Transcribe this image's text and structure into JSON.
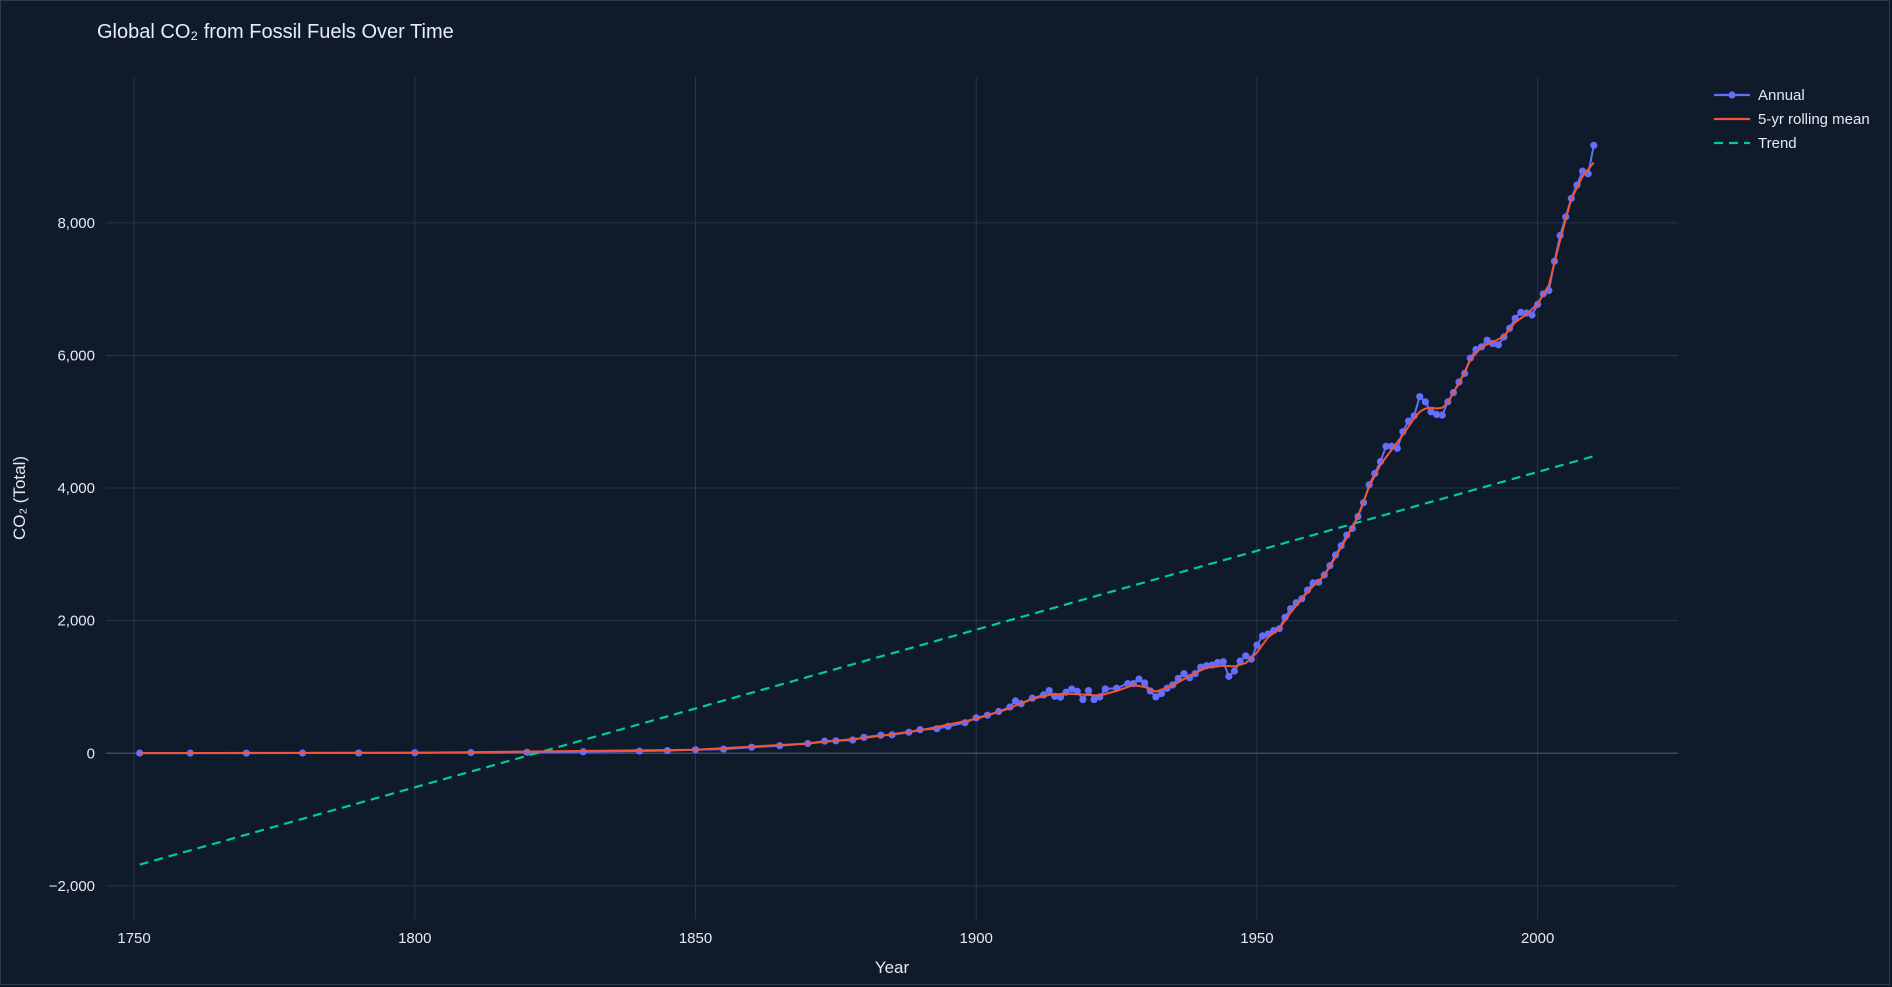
{
  "chart_data": {
    "type": "line",
    "title": "Global CO₂ from Fossil Fuels Over Time",
    "xlabel": "Year",
    "ylabel": "CO₂ (Total)",
    "xlim": [
      1745,
      2025
    ],
    "ylim": [
      -2500,
      10200
    ],
    "x_ticks": [
      1750,
      1800,
      1850,
      1900,
      1950,
      2000
    ],
    "y_ticks": [
      -2000,
      0,
      2000,
      4000,
      6000,
      8000
    ],
    "x_tick_labels": [
      "1750",
      "1800",
      "1850",
      "1900",
      "1950",
      "2000"
    ],
    "y_tick_labels": [
      "−2,000",
      "0",
      "2,000",
      "4,000",
      "6,000",
      "8,000"
    ],
    "grid": true,
    "legend_position": "top-right",
    "colors": {
      "background": "#0f1a2b",
      "annual": "#636efa",
      "rolling": "#ef553b",
      "trend": "#00cc96",
      "grid": "#27354a"
    },
    "series": [
      {
        "name": "Annual",
        "style": "lines+markers",
        "color": "#636efa",
        "points": [
          [
            1751,
            3
          ],
          [
            1760,
            3
          ],
          [
            1770,
            3
          ],
          [
            1780,
            4
          ],
          [
            1790,
            5
          ],
          [
            1800,
            8
          ],
          [
            1810,
            10
          ],
          [
            1820,
            14
          ],
          [
            1830,
            24
          ],
          [
            1840,
            33
          ],
          [
            1845,
            40
          ],
          [
            1850,
            54
          ],
          [
            1855,
            63
          ],
          [
            1860,
            91
          ],
          [
            1865,
            114
          ],
          [
            1870,
            147
          ],
          [
            1873,
            183
          ],
          [
            1875,
            188
          ],
          [
            1878,
            200
          ],
          [
            1880,
            240
          ],
          [
            1883,
            272
          ],
          [
            1885,
            277
          ],
          [
            1888,
            318
          ],
          [
            1890,
            356
          ],
          [
            1893,
            370
          ],
          [
            1895,
            407
          ],
          [
            1898,
            460
          ],
          [
            1900,
            534
          ],
          [
            1902,
            574
          ],
          [
            1904,
            630
          ],
          [
            1906,
            697
          ],
          [
            1907,
            790
          ],
          [
            1908,
            748
          ],
          [
            1910,
            831
          ],
          [
            1912,
            880
          ],
          [
            1913,
            945
          ],
          [
            1914,
            858
          ],
          [
            1915,
            845
          ],
          [
            1916,
            920
          ],
          [
            1917,
            970
          ],
          [
            1918,
            935
          ],
          [
            1919,
            810
          ],
          [
            1920,
            945
          ],
          [
            1921,
            810
          ],
          [
            1922,
            850
          ],
          [
            1923,
            970
          ],
          [
            1925,
            980
          ],
          [
            1927,
            1050
          ],
          [
            1928,
            1050
          ],
          [
            1929,
            1120
          ],
          [
            1930,
            1060
          ],
          [
            1931,
            940
          ],
          [
            1932,
            850
          ],
          [
            1933,
            900
          ],
          [
            1934,
            980
          ],
          [
            1935,
            1030
          ],
          [
            1936,
            1130
          ],
          [
            1937,
            1200
          ],
          [
            1938,
            1140
          ],
          [
            1939,
            1200
          ],
          [
            1940,
            1300
          ],
          [
            1941,
            1320
          ],
          [
            1942,
            1330
          ],
          [
            1943,
            1370
          ],
          [
            1944,
            1380
          ],
          [
            1945,
            1160
          ],
          [
            1946,
            1240
          ],
          [
            1947,
            1390
          ],
          [
            1948,
            1470
          ],
          [
            1949,
            1420
          ],
          [
            1950,
            1630
          ],
          [
            1951,
            1770
          ],
          [
            1952,
            1800
          ],
          [
            1953,
            1850
          ],
          [
            1954,
            1880
          ],
          [
            1955,
            2050
          ],
          [
            1956,
            2180
          ],
          [
            1957,
            2270
          ],
          [
            1958,
            2330
          ],
          [
            1959,
            2460
          ],
          [
            1960,
            2570
          ],
          [
            1961,
            2580
          ],
          [
            1962,
            2690
          ],
          [
            1963,
            2830
          ],
          [
            1964,
            2990
          ],
          [
            1965,
            3130
          ],
          [
            1966,
            3290
          ],
          [
            1967,
            3390
          ],
          [
            1968,
            3570
          ],
          [
            1969,
            3780
          ],
          [
            1970,
            4050
          ],
          [
            1971,
            4220
          ],
          [
            1972,
            4400
          ],
          [
            1973,
            4630
          ],
          [
            1974,
            4630
          ],
          [
            1975,
            4600
          ],
          [
            1976,
            4850
          ],
          [
            1977,
            5010
          ],
          [
            1978,
            5090
          ],
          [
            1979,
            5380
          ],
          [
            1980,
            5300
          ],
          [
            1981,
            5150
          ],
          [
            1982,
            5110
          ],
          [
            1983,
            5100
          ],
          [
            1984,
            5300
          ],
          [
            1985,
            5440
          ],
          [
            1986,
            5600
          ],
          [
            1987,
            5730
          ],
          [
            1988,
            5960
          ],
          [
            1989,
            6090
          ],
          [
            1990,
            6130
          ],
          [
            1991,
            6230
          ],
          [
            1992,
            6180
          ],
          [
            1993,
            6160
          ],
          [
            1994,
            6280
          ],
          [
            1995,
            6410
          ],
          [
            1996,
            6560
          ],
          [
            1997,
            6650
          ],
          [
            1998,
            6640
          ],
          [
            1999,
            6610
          ],
          [
            2000,
            6770
          ],
          [
            2001,
            6930
          ],
          [
            2002,
            6980
          ],
          [
            2003,
            7420
          ],
          [
            2004,
            7810
          ],
          [
            2005,
            8090
          ],
          [
            2006,
            8370
          ],
          [
            2007,
            8570
          ],
          [
            2008,
            8780
          ],
          [
            2009,
            8740
          ],
          [
            2010,
            9170
          ]
        ]
      },
      {
        "name": "5-yr rolling mean",
        "style": "lines",
        "color": "#ef553b",
        "points": [
          [
            1751,
            3
          ],
          [
            1800,
            8
          ],
          [
            1850,
            54
          ],
          [
            1870,
            147
          ],
          [
            1880,
            230
          ],
          [
            1890,
            345
          ],
          [
            1900,
            520
          ],
          [
            1905,
            650
          ],
          [
            1910,
            820
          ],
          [
            1913,
            880
          ],
          [
            1916,
            900
          ],
          [
            1920,
            880
          ],
          [
            1922,
            870
          ],
          [
            1925,
            940
          ],
          [
            1928,
            1030
          ],
          [
            1930,
            1000
          ],
          [
            1932,
            930
          ],
          [
            1935,
            1020
          ],
          [
            1938,
            1170
          ],
          [
            1941,
            1290
          ],
          [
            1944,
            1320
          ],
          [
            1946,
            1310
          ],
          [
            1948,
            1360
          ],
          [
            1950,
            1520
          ],
          [
            1952,
            1750
          ],
          [
            1954,
            1880
          ],
          [
            1956,
            2120
          ],
          [
            1958,
            2330
          ],
          [
            1960,
            2520
          ],
          [
            1962,
            2680
          ],
          [
            1964,
            2960
          ],
          [
            1966,
            3250
          ],
          [
            1968,
            3580
          ],
          [
            1970,
            4020
          ],
          [
            1972,
            4350
          ],
          [
            1974,
            4580
          ],
          [
            1976,
            4800
          ],
          [
            1978,
            5050
          ],
          [
            1979,
            5150
          ],
          [
            1980,
            5200
          ],
          [
            1981,
            5210
          ],
          [
            1982,
            5200
          ],
          [
            1983,
            5210
          ],
          [
            1984,
            5280
          ],
          [
            1985,
            5440
          ],
          [
            1986,
            5580
          ],
          [
            1988,
            5930
          ],
          [
            1990,
            6130
          ],
          [
            1992,
            6200
          ],
          [
            1994,
            6290
          ],
          [
            1996,
            6500
          ],
          [
            1998,
            6620
          ],
          [
            2000,
            6780
          ],
          [
            2002,
            7060
          ],
          [
            2004,
            7740
          ],
          [
            2006,
            8360
          ],
          [
            2008,
            8700
          ],
          [
            2010,
            8910
          ]
        ]
      },
      {
        "name": "Trend",
        "style": "dash",
        "color": "#00cc96",
        "points": [
          [
            1751,
            -1680
          ],
          [
            2010,
            4480
          ]
        ]
      }
    ]
  }
}
